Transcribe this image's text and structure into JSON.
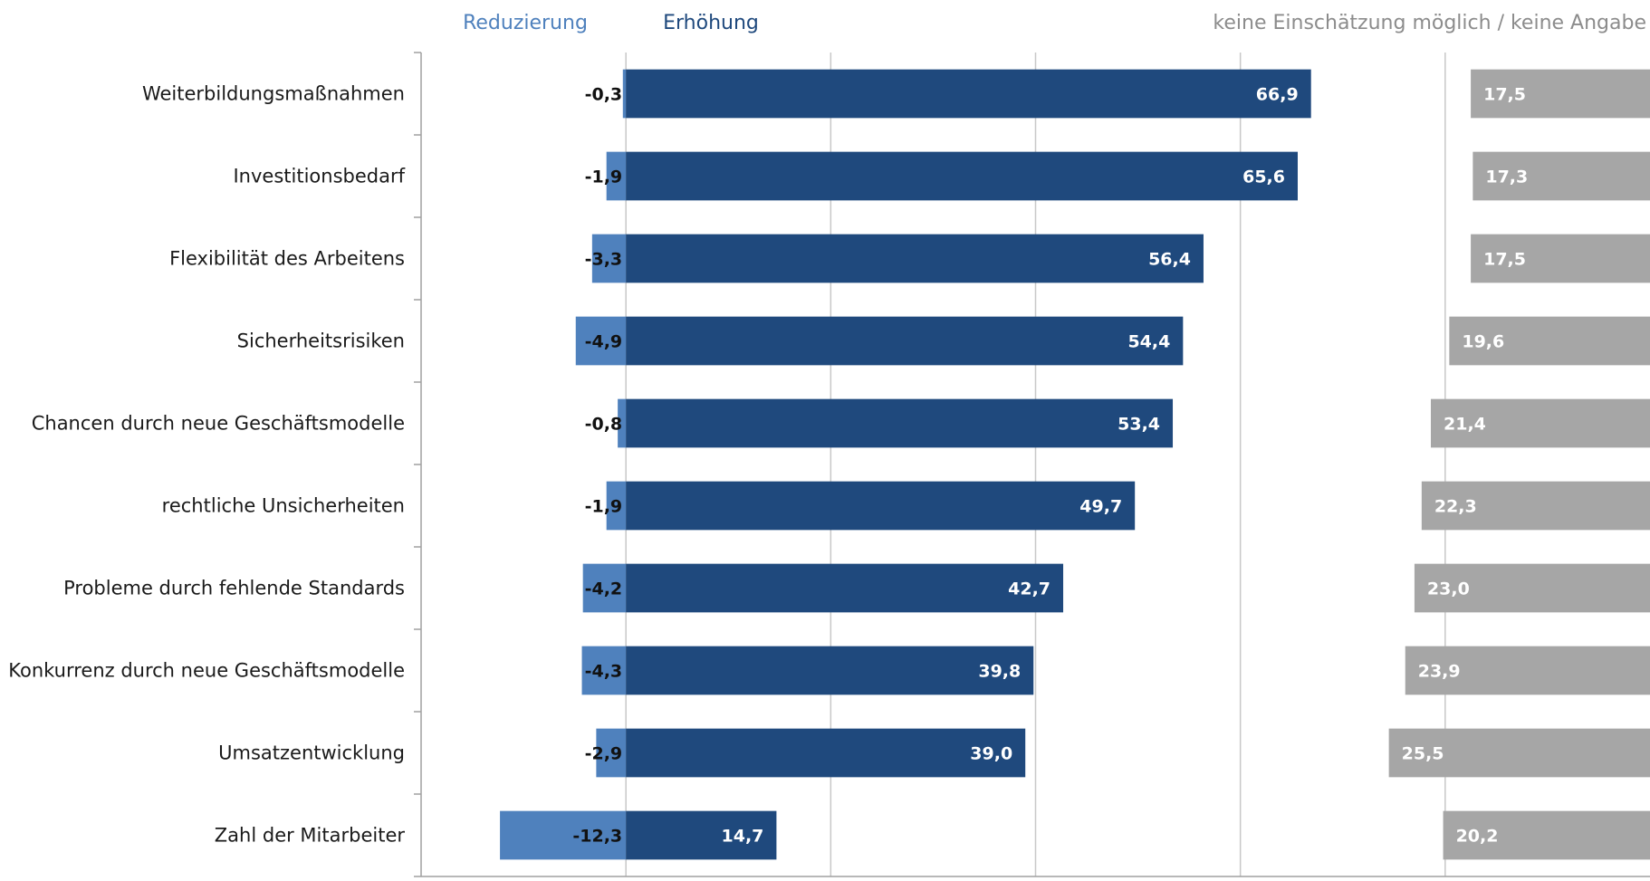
{
  "chart_data": {
    "type": "bar",
    "orientation": "horizontal",
    "stacked": "diverging",
    "categories": [
      "Weiterbildungsmaßnahmen",
      "Investitionsbedarf",
      "Flexibilität des Arbeitens",
      "Sicherheitsrisiken",
      "Chancen durch neue Geschäftsmodelle",
      "rechtliche Unsicherheiten",
      "Probleme durch fehlende Standards",
      "Konkurrenz durch neue Geschäftsmodelle",
      "Umsatzentwicklung",
      "Zahl der Mitarbeiter"
    ],
    "series": [
      {
        "name": "Reduzierung",
        "values": [
          -0.3,
          -1.9,
          -3.3,
          -4.9,
          -0.8,
          -1.9,
          -4.2,
          -4.3,
          -2.9,
          -12.3
        ],
        "labels": [
          "-0,3",
          "-1,9",
          "-3,3",
          "-4,9",
          "-0,8",
          "-1,9",
          "-4,2",
          "-4,3",
          "-2,9",
          "-12,3"
        ],
        "color": "#4f81bd"
      },
      {
        "name": "Erhöhung",
        "values": [
          66.9,
          65.6,
          56.4,
          54.4,
          53.4,
          49.7,
          42.7,
          39.8,
          39.0,
          14.7
        ],
        "labels": [
          "66,9",
          "65,6",
          "56,4",
          "54,4",
          "53,4",
          "49,7",
          "42,7",
          "39,8",
          "39,0",
          "14,7"
        ],
        "color": "#1f497d"
      },
      {
        "name": "keine Einschätzung möglich / keine Angabe",
        "values": [
          17.5,
          17.3,
          17.5,
          19.6,
          21.4,
          22.3,
          23.0,
          23.9,
          25.5,
          20.2
        ],
        "labels": [
          "17,5",
          "17,3",
          "17,5",
          "19,6",
          "21,4",
          "22,3",
          "23,0",
          "23,9",
          "25,5",
          "20,2"
        ],
        "color": "#a6a6a6"
      }
    ],
    "xlim": [
      -20,
      100
    ],
    "gridlines_at": [
      0,
      20,
      40,
      60,
      80
    ],
    "grid": true,
    "legend": "top",
    "legend_colors": {
      "Reduzierung": "#4f81bd",
      "Erhöhung": "#1f497d",
      "keine Einschätzung möglich / keine Angabe": "#a6a6a6"
    }
  }
}
